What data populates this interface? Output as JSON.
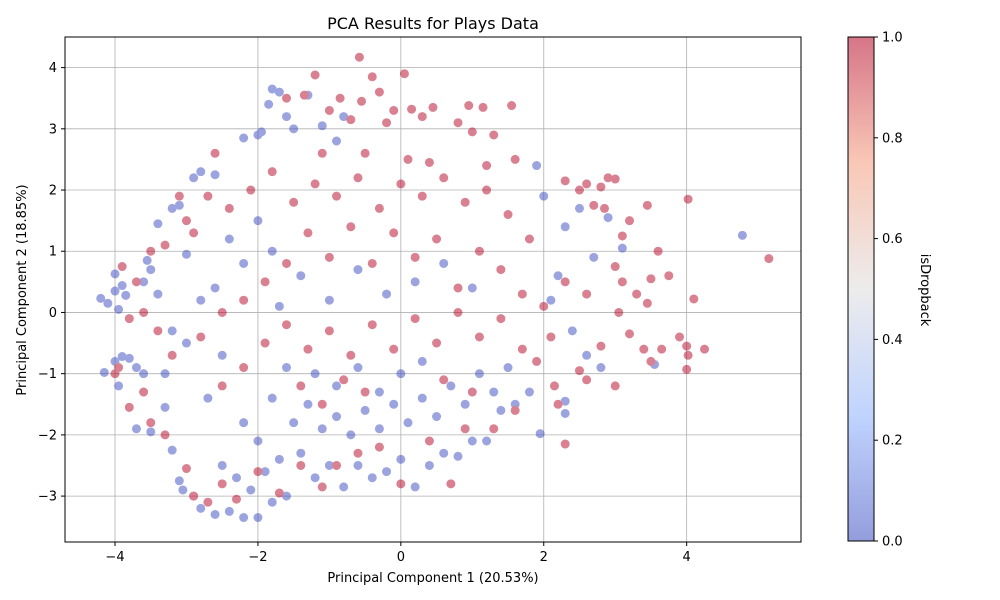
{
  "chart_data": {
    "type": "scatter",
    "title": "PCA Results for Plays Data",
    "xlabel": "Principal Component 1 (20.53%)",
    "ylabel": "Principal Component 2 (18.85%)",
    "xlim": [
      -4.7,
      5.6
    ],
    "ylim": [
      -3.75,
      4.5
    ],
    "xticks": [
      -4,
      -2,
      0,
      2,
      4
    ],
    "yticks": [
      -3,
      -2,
      -1,
      0,
      1,
      2,
      3,
      4
    ],
    "x_tick_labels": [
      "−4",
      "−2",
      "0",
      "2",
      "4"
    ],
    "y_tick_labels": [
      "−3",
      "−2",
      "−1",
      "0",
      "1",
      "2",
      "3",
      "4"
    ],
    "grid": true,
    "marker_alpha": 0.5,
    "colormap": {
      "name": "coolwarm",
      "label": "isDropback",
      "range": [
        0,
        1
      ],
      "ticks": [
        0,
        0.2,
        0.4,
        0.6,
        0.8,
        1.0
      ],
      "tick_labels": [
        "0.0",
        "0.2",
        "0.4",
        "0.6",
        "0.8",
        "1.0"
      ],
      "stops": [
        "#3b4cc0",
        "#8db0fe",
        "#dddcdc",
        "#f49a7b",
        "#b40426"
      ]
    },
    "series": [
      {
        "label": "isDropback = 0",
        "color": "#3b4cc0",
        "value": 0,
        "points": [
          [
            -4.2,
            0.23
          ],
          [
            -4.1,
            0.15
          ],
          [
            -4.0,
            0.35
          ],
          [
            -4.0,
            0.63
          ],
          [
            -3.9,
            0.44
          ],
          [
            -3.85,
            0.28
          ],
          [
            -3.95,
            0.05
          ],
          [
            -4.15,
            -0.98
          ],
          [
            -4.0,
            -0.8
          ],
          [
            -3.9,
            -0.72
          ],
          [
            -3.95,
            -1.2
          ],
          [
            -3.8,
            -0.75
          ],
          [
            -3.7,
            -0.9
          ],
          [
            -3.6,
            -1.0
          ],
          [
            -3.7,
            -1.9
          ],
          [
            -3.5,
            -1.95
          ],
          [
            -3.3,
            -1.55
          ],
          [
            -3.2,
            -2.25
          ],
          [
            -3.1,
            -2.75
          ],
          [
            -3.05,
            -2.9
          ],
          [
            -2.9,
            -3.0
          ],
          [
            -2.8,
            -3.2
          ],
          [
            -2.6,
            -3.3
          ],
          [
            -2.4,
            -3.25
          ],
          [
            -2.2,
            -3.35
          ],
          [
            -2.0,
            -3.35
          ],
          [
            -1.8,
            -3.1
          ],
          [
            -1.6,
            -3.0
          ],
          [
            -3.5,
            0.7
          ],
          [
            -3.4,
            1.45
          ],
          [
            -3.2,
            1.7
          ],
          [
            -3.1,
            1.75
          ],
          [
            -3.0,
            0.95
          ],
          [
            -2.9,
            2.2
          ],
          [
            -2.8,
            2.3
          ],
          [
            -2.6,
            2.25
          ],
          [
            -2.2,
            2.85
          ],
          [
            -2.0,
            2.9
          ],
          [
            -1.95,
            2.95
          ],
          [
            -1.85,
            3.4
          ],
          [
            -1.8,
            3.65
          ],
          [
            -1.6,
            3.2
          ],
          [
            -1.5,
            3.0
          ],
          [
            -1.3,
            3.55
          ],
          [
            -1.1,
            3.05
          ],
          [
            -0.9,
            2.8
          ],
          [
            -0.8,
            3.2
          ],
          [
            -1.7,
            3.6
          ],
          [
            -2.5,
            -2.5
          ],
          [
            -2.3,
            -2.7
          ],
          [
            -2.1,
            -2.9
          ],
          [
            -1.9,
            -2.6
          ],
          [
            -1.7,
            -2.4
          ],
          [
            -1.4,
            -2.3
          ],
          [
            -1.2,
            -2.7
          ],
          [
            -1.0,
            -2.5
          ],
          [
            -0.8,
            -2.85
          ],
          [
            -0.6,
            -2.5
          ],
          [
            -0.4,
            -2.7
          ],
          [
            -0.2,
            -2.6
          ],
          [
            0.0,
            -2.4
          ],
          [
            0.2,
            -2.85
          ],
          [
            0.4,
            -2.5
          ],
          [
            0.6,
            -2.3
          ],
          [
            0.8,
            -2.35
          ],
          [
            1.0,
            -2.1
          ],
          [
            1.2,
            -2.1
          ],
          [
            1.4,
            -1.6
          ],
          [
            1.6,
            -1.5
          ],
          [
            1.8,
            -1.3
          ],
          [
            1.95,
            -1.98
          ],
          [
            -1.5,
            -1.8
          ],
          [
            -1.3,
            -1.5
          ],
          [
            -1.1,
            -1.9
          ],
          [
            -0.9,
            -1.7
          ],
          [
            -0.7,
            -2.0
          ],
          [
            -0.5,
            -1.6
          ],
          [
            -0.3,
            -1.9
          ],
          [
            -0.1,
            -1.5
          ],
          [
            0.1,
            -1.8
          ],
          [
            0.3,
            -1.4
          ],
          [
            0.5,
            -1.7
          ],
          [
            0.7,
            -1.2
          ],
          [
            0.9,
            -1.5
          ],
          [
            1.1,
            -1.0
          ],
          [
            1.3,
            -1.3
          ],
          [
            1.5,
            -0.9
          ],
          [
            -1.2,
            -1.0
          ],
          [
            -0.9,
            -1.2
          ],
          [
            -0.6,
            -0.9
          ],
          [
            -0.3,
            -1.3
          ],
          [
            0.0,
            -1.0
          ],
          [
            0.3,
            -0.8
          ],
          [
            -2.4,
            1.2
          ],
          [
            -2.2,
            0.8
          ],
          [
            -2.0,
            1.5
          ],
          [
            -1.8,
            1.0
          ],
          [
            -2.6,
            0.4
          ],
          [
            -2.8,
            0.2
          ],
          [
            -3.0,
            -0.5
          ],
          [
            -3.2,
            -0.3
          ],
          [
            -2.5,
            -0.7
          ],
          [
            -2.7,
            -1.4
          ],
          [
            -2.2,
            -1.8
          ],
          [
            -2.0,
            -2.1
          ],
          [
            -1.8,
            -1.4
          ],
          [
            -1.6,
            -0.9
          ],
          [
            -3.3,
            -1.0
          ],
          [
            -3.4,
            0.3
          ],
          [
            -3.6,
            0.5
          ],
          [
            -3.55,
            0.85
          ],
          [
            1.9,
            2.4
          ],
          [
            2.0,
            1.9
          ],
          [
            2.3,
            1.4
          ],
          [
            2.5,
            1.7
          ],
          [
            2.7,
            0.9
          ],
          [
            2.2,
            0.6
          ],
          [
            2.1,
            0.2
          ],
          [
            2.4,
            -0.3
          ],
          [
            2.3,
            -1.45
          ],
          [
            2.3,
            -1.65
          ],
          [
            2.6,
            -0.7
          ],
          [
            2.8,
            -0.9
          ],
          [
            3.1,
            1.05
          ],
          [
            2.9,
            1.55
          ],
          [
            3.55,
            -0.85
          ],
          [
            4.78,
            1.26
          ],
          [
            1.0,
            0.4
          ],
          [
            0.6,
            0.8
          ],
          [
            0.2,
            0.5
          ],
          [
            -0.2,
            0.3
          ],
          [
            -0.6,
            0.7
          ],
          [
            -1.0,
            0.2
          ],
          [
            -1.4,
            0.6
          ],
          [
            -1.7,
            0.1
          ]
        ]
      },
      {
        "label": "isDropback = 1",
        "color": "#b40426",
        "value": 1,
        "points": [
          [
            -0.58,
            4.17
          ],
          [
            0.05,
            3.9
          ],
          [
            -0.3,
            3.6
          ],
          [
            -0.55,
            3.45
          ],
          [
            -0.85,
            3.5
          ],
          [
            -0.1,
            3.3
          ],
          [
            0.15,
            3.32
          ],
          [
            0.45,
            3.35
          ],
          [
            0.95,
            3.38
          ],
          [
            1.15,
            3.35
          ],
          [
            1.55,
            3.38
          ],
          [
            -1.2,
            3.88
          ],
          [
            -1.35,
            3.55
          ],
          [
            -1.6,
            3.5
          ],
          [
            -0.4,
            3.85
          ],
          [
            -1.0,
            3.3
          ],
          [
            -0.7,
            3.15
          ],
          [
            -0.2,
            3.1
          ],
          [
            0.3,
            3.2
          ],
          [
            0.8,
            3.1
          ],
          [
            1.3,
            2.9
          ],
          [
            1.0,
            2.95
          ],
          [
            1.6,
            2.5
          ],
          [
            2.3,
            2.15
          ],
          [
            2.5,
            2.0
          ],
          [
            2.6,
            2.1
          ],
          [
            2.8,
            2.05
          ],
          [
            2.9,
            2.2
          ],
          [
            3.0,
            2.18
          ],
          [
            2.7,
            1.75
          ],
          [
            2.85,
            1.7
          ],
          [
            3.1,
            1.25
          ],
          [
            3.2,
            1.5
          ],
          [
            3.45,
            1.75
          ],
          [
            4.02,
            1.85
          ],
          [
            3.6,
            1.0
          ],
          [
            3.5,
            0.55
          ],
          [
            3.75,
            0.6
          ],
          [
            3.0,
            0.75
          ],
          [
            3.1,
            0.5
          ],
          [
            3.3,
            0.3
          ],
          [
            3.45,
            0.15
          ],
          [
            4.1,
            0.22
          ],
          [
            3.05,
            0.0
          ],
          [
            3.2,
            -0.35
          ],
          [
            3.4,
            -0.6
          ],
          [
            3.5,
            -0.8
          ],
          [
            3.65,
            -0.6
          ],
          [
            3.9,
            -0.4
          ],
          [
            4.0,
            -0.55
          ],
          [
            4.02,
            -0.7
          ],
          [
            4.25,
            -0.6
          ],
          [
            4.0,
            -0.93
          ],
          [
            3.0,
            -1.2
          ],
          [
            2.8,
            -0.55
          ],
          [
            2.6,
            -1.1
          ],
          [
            2.5,
            -0.95
          ],
          [
            2.3,
            -2.15
          ],
          [
            2.2,
            -1.5
          ],
          [
            2.15,
            -1.2
          ],
          [
            5.15,
            0.88
          ],
          [
            1.8,
            1.2
          ],
          [
            1.5,
            1.6
          ],
          [
            1.2,
            2.0
          ],
          [
            0.9,
            1.8
          ],
          [
            0.6,
            2.2
          ],
          [
            0.3,
            1.9
          ],
          [
            0.0,
            2.1
          ],
          [
            -0.3,
            1.7
          ],
          [
            -0.6,
            2.2
          ],
          [
            -0.9,
            1.9
          ],
          [
            -1.2,
            2.1
          ],
          [
            -1.5,
            1.8
          ],
          [
            -1.8,
            2.3
          ],
          [
            -2.1,
            2.0
          ],
          [
            -2.4,
            1.7
          ],
          [
            -2.7,
            1.9
          ],
          [
            -3.0,
            1.5
          ],
          [
            -3.3,
            1.1
          ],
          [
            -3.5,
            1.0
          ],
          [
            -3.7,
            0.5
          ],
          [
            -3.9,
            0.75
          ],
          [
            -3.6,
            0.0
          ],
          [
            -3.4,
            -0.3
          ],
          [
            -3.2,
            -0.7
          ],
          [
            -3.6,
            -1.3
          ],
          [
            -3.8,
            -1.55
          ],
          [
            -3.5,
            -1.8
          ],
          [
            -3.3,
            -2.0
          ],
          [
            -3.0,
            -2.55
          ],
          [
            -2.9,
            -3.0
          ],
          [
            -2.7,
            -3.1
          ],
          [
            -2.5,
            -2.8
          ],
          [
            -2.3,
            -3.05
          ],
          [
            -2.0,
            -2.6
          ],
          [
            -1.7,
            -2.95
          ],
          [
            -1.4,
            -2.5
          ],
          [
            -1.1,
            -2.85
          ],
          [
            -0.9,
            -2.5
          ],
          [
            -0.6,
            -2.3
          ],
          [
            -0.3,
            -2.2
          ],
          [
            0.0,
            -2.8
          ],
          [
            0.4,
            -2.1
          ],
          [
            0.7,
            -2.8
          ],
          [
            0.9,
            -1.9
          ],
          [
            1.3,
            -1.9
          ],
          [
            1.6,
            -1.6
          ],
          [
            1.9,
            -0.8
          ],
          [
            2.1,
            -0.4
          ],
          [
            1.7,
            0.3
          ],
          [
            1.4,
            0.7
          ],
          [
            1.1,
            1.0
          ],
          [
            0.8,
            0.4
          ],
          [
            0.5,
            1.2
          ],
          [
            0.2,
            0.9
          ],
          [
            -0.1,
            1.3
          ],
          [
            -0.4,
            0.8
          ],
          [
            -0.7,
            1.4
          ],
          [
            -1.0,
            0.9
          ],
          [
            -1.3,
            1.3
          ],
          [
            -1.6,
            0.8
          ],
          [
            -1.9,
            0.5
          ],
          [
            -2.2,
            0.2
          ],
          [
            -2.5,
            0.0
          ],
          [
            -2.8,
            -0.4
          ],
          [
            -2.5,
            -1.2
          ],
          [
            -2.2,
            -0.9
          ],
          [
            -1.9,
            -0.5
          ],
          [
            -1.6,
            -0.2
          ],
          [
            -1.3,
            -0.6
          ],
          [
            -1.0,
            -0.3
          ],
          [
            -0.7,
            -0.7
          ],
          [
            -0.4,
            -0.2
          ],
          [
            -0.1,
            -0.6
          ],
          [
            0.2,
            -0.1
          ],
          [
            0.5,
            -0.5
          ],
          [
            0.8,
            0.0
          ],
          [
            1.1,
            -0.4
          ],
          [
            1.4,
            -0.1
          ],
          [
            1.7,
            -0.6
          ],
          [
            2.0,
            0.1
          ],
          [
            2.3,
            0.5
          ],
          [
            2.6,
            0.3
          ],
          [
            -1.4,
            -1.2
          ],
          [
            -1.1,
            -1.5
          ],
          [
            -0.8,
            -1.1
          ],
          [
            -0.5,
            -1.3
          ],
          [
            0.6,
            -1.1
          ],
          [
            1.0,
            -1.3
          ],
          [
            0.1,
            2.5
          ],
          [
            -0.5,
            2.6
          ],
          [
            0.4,
            2.45
          ],
          [
            -1.1,
            2.6
          ],
          [
            1.2,
            2.4
          ],
          [
            -2.6,
            2.6
          ],
          [
            -3.1,
            1.9
          ],
          [
            -2.9,
            1.3
          ],
          [
            -3.8,
            -0.1
          ],
          [
            -4.0,
            -1.0
          ],
          [
            -3.95,
            -0.9
          ]
        ]
      }
    ]
  }
}
